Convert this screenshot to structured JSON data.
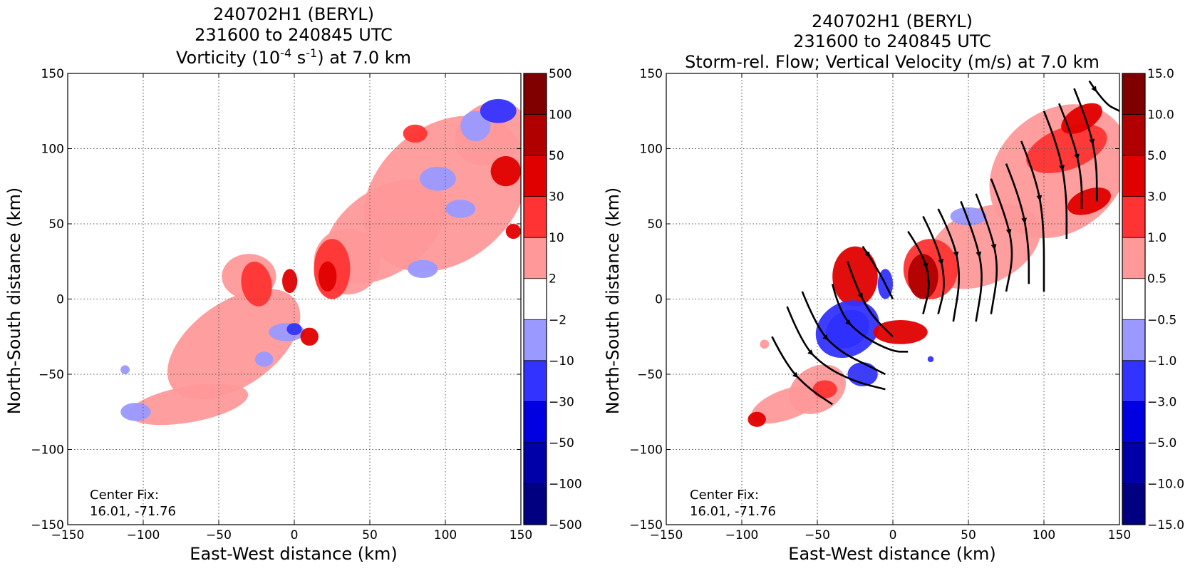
{
  "colors": {
    "levels": [
      "#000080",
      "#0000a8",
      "#0000e0",
      "#3333ff",
      "#9999ff",
      "#ffffff",
      "#ff9999",
      "#ff3333",
      "#e00000",
      "#b00000",
      "#800000"
    ],
    "grid": "#555555",
    "streamline": "#000000"
  },
  "chart_data": [
    {
      "type": "heatmap",
      "title_lines": [
        "240702H1 (BERYL)",
        "231600 to 240845 UTC"
      ],
      "title_var": {
        "pre": "Vorticity (10",
        "sup1": "-4",
        "mid": " s",
        "sup2": "-1",
        "post": ") at 7.0 km"
      },
      "xlabel": "East-West distance (km)",
      "ylabel": "North-South distance (km)",
      "xlim": [
        -150,
        150
      ],
      "ylim": [
        -150,
        150
      ],
      "xticks": [
        "−150",
        "−100",
        "−50",
        "0",
        "50",
        "100",
        "150"
      ],
      "yticks": [
        "150",
        "100",
        "50",
        "0",
        "−50",
        "−100",
        "−150"
      ],
      "grid": true,
      "colorbar_labels": [
        "500",
        "100",
        "50",
        "30",
        "10",
        "2",
        "−2",
        "−10",
        "−30",
        "−50",
        "−100",
        "−500"
      ],
      "center_fix_label": "Center Fix:",
      "center_fix_value": "16.01, -71.76",
      "blobs": [
        {
          "x": 100,
          "y": 70,
          "rx": 60,
          "ry": 45,
          "rot": 40,
          "lvl": 6
        },
        {
          "x": 60,
          "y": 45,
          "rx": 45,
          "ry": 28,
          "rot": 35,
          "lvl": 6
        },
        {
          "x": 35,
          "y": 25,
          "rx": 22,
          "ry": 22,
          "rot": 0,
          "lvl": 6
        },
        {
          "x": 25,
          "y": 20,
          "rx": 12,
          "ry": 20,
          "rot": 0,
          "lvl": 7
        },
        {
          "x": 22,
          "y": 15,
          "rx": 6,
          "ry": 10,
          "rot": 0,
          "lvl": 8
        },
        {
          "x": 130,
          "y": 110,
          "rx": 25,
          "ry": 20,
          "rot": 30,
          "lvl": 6
        },
        {
          "x": 120,
          "y": 115,
          "rx": 10,
          "ry": 10,
          "rot": 0,
          "lvl": 4
        },
        {
          "x": 135,
          "y": 125,
          "rx": 12,
          "ry": 8,
          "rot": 0,
          "lvl": 3
        },
        {
          "x": 95,
          "y": 80,
          "rx": 12,
          "ry": 8,
          "rot": 0,
          "lvl": 4
        },
        {
          "x": 110,
          "y": 60,
          "rx": 10,
          "ry": 6,
          "rot": 0,
          "lvl": 4
        },
        {
          "x": 85,
          "y": 20,
          "rx": 10,
          "ry": 6,
          "rot": 0,
          "lvl": 4
        },
        {
          "x": 140,
          "y": 85,
          "rx": 10,
          "ry": 10,
          "rot": 0,
          "lvl": 8
        },
        {
          "x": 80,
          "y": 110,
          "rx": 8,
          "ry": 6,
          "rot": 0,
          "lvl": 7
        },
        {
          "x": 145,
          "y": 45,
          "rx": 5,
          "ry": 5,
          "rot": 0,
          "lvl": 8
        },
        {
          "x": -40,
          "y": -30,
          "rx": 50,
          "ry": 28,
          "rot": 35,
          "lvl": 6
        },
        {
          "x": -70,
          "y": -70,
          "rx": 40,
          "ry": 12,
          "rot": 10,
          "lvl": 6
        },
        {
          "x": -30,
          "y": 15,
          "rx": 18,
          "ry": 15,
          "rot": 0,
          "lvl": 6
        },
        {
          "x": -25,
          "y": 10,
          "rx": 10,
          "ry": 15,
          "rot": 10,
          "lvl": 7
        },
        {
          "x": -5,
          "y": -22,
          "rx": 12,
          "ry": 6,
          "rot": 0,
          "lvl": 4
        },
        {
          "x": 0,
          "y": -20,
          "rx": 5,
          "ry": 4,
          "rot": 0,
          "lvl": 3
        },
        {
          "x": 10,
          "y": -25,
          "rx": 6,
          "ry": 6,
          "rot": 0,
          "lvl": 8
        },
        {
          "x": -3,
          "y": 12,
          "rx": 5,
          "ry": 8,
          "rot": 0,
          "lvl": 8
        },
        {
          "x": -20,
          "y": -40,
          "rx": 6,
          "ry": 5,
          "rot": 0,
          "lvl": 4
        },
        {
          "x": -112,
          "y": -47,
          "rx": 3,
          "ry": 3,
          "rot": 0,
          "lvl": 4
        },
        {
          "x": -105,
          "y": -75,
          "rx": 10,
          "ry": 6,
          "rot": 0,
          "lvl": 4
        }
      ],
      "streamlines": []
    },
    {
      "type": "heatmap",
      "title_lines": [
        "240702H1 (BERYL)",
        "231600 to 240845 UTC"
      ],
      "title_var": {
        "pre": "Storm-rel. Flow; Vertical Velocity (m/s) at 7.0 km",
        "sup1": "",
        "mid": "",
        "sup2": "",
        "post": ""
      },
      "xlabel": "East-West distance (km)",
      "ylabel": "North-South distance (km)",
      "xlim": [
        -150,
        150
      ],
      "ylim": [
        -150,
        150
      ],
      "xticks": [
        "−150",
        "−100",
        "−50",
        "0",
        "50",
        "100",
        "150"
      ],
      "yticks": [
        "150",
        "100",
        "50",
        "0",
        "−50",
        "−100",
        "−150"
      ],
      "grid": true,
      "colorbar_labels": [
        "15.0",
        "10.0",
        "5.0",
        "3.0",
        "1.0",
        "0.5",
        "−0.5",
        "−1.0",
        "−3.0",
        "−5.0",
        "−10.0",
        "−15.0"
      ],
      "center_fix_label": "Center Fix:",
      "center_fix_value": "16.01, -71.76",
      "blobs": [
        {
          "x": 110,
          "y": 85,
          "rx": 50,
          "ry": 40,
          "rot": 40,
          "lvl": 6
        },
        {
          "x": 115,
          "y": 100,
          "rx": 28,
          "ry": 14,
          "rot": 20,
          "lvl": 7
        },
        {
          "x": 125,
          "y": 120,
          "rx": 15,
          "ry": 8,
          "rot": 30,
          "lvl": 8
        },
        {
          "x": 130,
          "y": 65,
          "rx": 15,
          "ry": 8,
          "rot": 20,
          "lvl": 8
        },
        {
          "x": 60,
          "y": 35,
          "rx": 40,
          "ry": 25,
          "rot": 25,
          "lvl": 6
        },
        {
          "x": 25,
          "y": 20,
          "rx": 18,
          "ry": 20,
          "rot": 0,
          "lvl": 7
        },
        {
          "x": 20,
          "y": 15,
          "rx": 10,
          "ry": 15,
          "rot": 0,
          "lvl": 9
        },
        {
          "x": 50,
          "y": 55,
          "rx": 12,
          "ry": 6,
          "rot": 0,
          "lvl": 4
        },
        {
          "x": -25,
          "y": 15,
          "rx": 15,
          "ry": 20,
          "rot": 0,
          "lvl": 8
        },
        {
          "x": -30,
          "y": -20,
          "rx": 15,
          "ry": 12,
          "rot": 30,
          "lvl": 2
        },
        {
          "x": -30,
          "y": -20,
          "rx": 22,
          "ry": 18,
          "rot": 30,
          "lvl": 3
        },
        {
          "x": -5,
          "y": 10,
          "rx": 5,
          "ry": 10,
          "rot": 0,
          "lvl": 3
        },
        {
          "x": 5,
          "y": -22,
          "rx": 18,
          "ry": 8,
          "rot": 0,
          "lvl": 8
        },
        {
          "x": -70,
          "y": -70,
          "rx": 25,
          "ry": 10,
          "rot": 20,
          "lvl": 6
        },
        {
          "x": -50,
          "y": -60,
          "rx": 20,
          "ry": 15,
          "rot": 30,
          "lvl": 6
        },
        {
          "x": -45,
          "y": -60,
          "rx": 8,
          "ry": 6,
          "rot": 0,
          "lvl": 7
        },
        {
          "x": -20,
          "y": -50,
          "rx": 10,
          "ry": 8,
          "rot": 0,
          "lvl": 3
        },
        {
          "x": -90,
          "y": -80,
          "rx": 6,
          "ry": 5,
          "rot": 0,
          "lvl": 8
        },
        {
          "x": -85,
          "y": -30,
          "rx": 3,
          "ry": 3,
          "rot": 0,
          "lvl": 6
        },
        {
          "x": 25,
          "y": -40,
          "rx": 2,
          "ry": 2,
          "rot": 0,
          "lvl": 3
        }
      ],
      "streamlines": [
        [
          [
            -80,
            -25
          ],
          [
            -70,
            -45
          ],
          [
            -55,
            -60
          ],
          [
            -40,
            -70
          ]
        ],
        [
          [
            -70,
            -5
          ],
          [
            -60,
            -30
          ],
          [
            -45,
            -45
          ],
          [
            -25,
            -55
          ],
          [
            -5,
            -60
          ]
        ],
        [
          [
            -60,
            5
          ],
          [
            -50,
            -20
          ],
          [
            -35,
            -35
          ],
          [
            -15,
            -45
          ],
          [
            -5,
            -50
          ]
        ],
        [
          [
            -40,
            10
          ],
          [
            -35,
            -10
          ],
          [
            -20,
            -25
          ],
          [
            0,
            -35
          ],
          [
            10,
            -35
          ]
        ],
        [
          [
            -30,
            25
          ],
          [
            -25,
            10
          ],
          [
            -15,
            -10
          ],
          [
            0,
            -25
          ]
        ],
        [
          [
            -20,
            35
          ],
          [
            -10,
            20
          ],
          [
            0,
            0
          ]
        ],
        [
          [
            10,
            45
          ],
          [
            20,
            30
          ],
          [
            25,
            10
          ],
          [
            20,
            -10
          ]
        ],
        [
          [
            20,
            55
          ],
          [
            30,
            35
          ],
          [
            35,
            10
          ],
          [
            30,
            -10
          ]
        ],
        [
          [
            30,
            60
          ],
          [
            40,
            40
          ],
          [
            45,
            15
          ],
          [
            40,
            -15
          ]
        ],
        [
          [
            45,
            65
          ],
          [
            55,
            40
          ],
          [
            60,
            15
          ],
          [
            55,
            -15
          ]
        ],
        [
          [
            55,
            70
          ],
          [
            65,
            45
          ],
          [
            70,
            20
          ],
          [
            65,
            -10
          ]
        ],
        [
          [
            65,
            80
          ],
          [
            75,
            55
          ],
          [
            80,
            30
          ],
          [
            75,
            5
          ]
        ],
        [
          [
            75,
            90
          ],
          [
            85,
            65
          ],
          [
            90,
            35
          ],
          [
            90,
            10
          ]
        ],
        [
          [
            85,
            105
          ],
          [
            95,
            80
          ],
          [
            100,
            50
          ],
          [
            100,
            5
          ]
        ],
        [
          [
            100,
            125
          ],
          [
            110,
            100
          ],
          [
            115,
            70
          ],
          [
            115,
            40
          ]
        ],
        [
          [
            110,
            130
          ],
          [
            120,
            105
          ],
          [
            125,
            80
          ],
          [
            125,
            60
          ]
        ],
        [
          [
            120,
            140
          ],
          [
            130,
            115
          ],
          [
            135,
            90
          ],
          [
            135,
            65
          ]
        ],
        [
          [
            130,
            145
          ],
          [
            140,
            130
          ],
          [
            150,
            125
          ]
        ]
      ]
    }
  ]
}
